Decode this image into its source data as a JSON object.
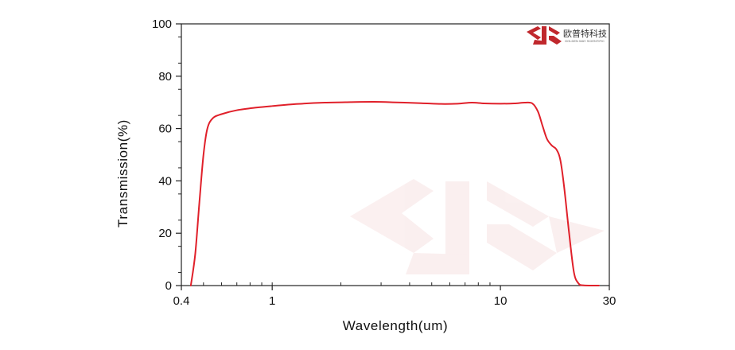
{
  "chart_data": {
    "type": "line",
    "title": "",
    "xlabel": "Wavelength(um)",
    "ylabel": "Transmission(%)",
    "x_scale": "log",
    "xlim": [
      0.4,
      30
    ],
    "ylim": [
      0,
      100
    ],
    "x_ticks": [
      0.4,
      1,
      10,
      30
    ],
    "x_tick_labels": [
      "0.4",
      "1",
      "10",
      "30"
    ],
    "y_ticks": [
      0,
      20,
      40,
      60,
      80,
      100
    ],
    "y_tick_labels": [
      "0",
      "20",
      "40",
      "60",
      "80",
      "100"
    ],
    "grid": false,
    "legend": "none",
    "series": [
      {
        "color": "#e0202a",
        "x": [
          0.44,
          0.46,
          0.48,
          0.5,
          0.52,
          0.55,
          0.6,
          0.7,
          0.85,
          1.0,
          1.3,
          1.7,
          2.2,
          2.8,
          3.5,
          4.5,
          5.5,
          6.5,
          7.5,
          8.5,
          10.0,
          11.5,
          12.8,
          13.8,
          14.6,
          15.3,
          16.0,
          16.8,
          17.6,
          18.3,
          19.0,
          20.0,
          21.0,
          22.0,
          23.0,
          25.0,
          27.0
        ],
        "values": [
          0,
          12,
          32,
          50,
          60,
          64,
          65.5,
          67,
          68,
          68.6,
          69.4,
          69.9,
          70.1,
          70.2,
          70,
          69.7,
          69.4,
          69.5,
          69.9,
          69.6,
          69.5,
          69.6,
          69.9,
          69.6,
          66.5,
          61,
          56,
          53.5,
          52,
          48,
          38,
          20,
          5,
          0.8,
          0.1,
          0,
          0
        ]
      }
    ]
  },
  "logo": {
    "name": "欧普特科技",
    "tagline": "GOLDEN WAY SCIENTIFIC",
    "mark_color": "#c0282d"
  }
}
